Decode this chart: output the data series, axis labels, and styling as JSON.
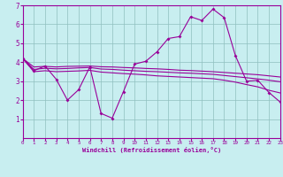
{
  "xlabel": "Windchill (Refroidissement éolien,°C)",
  "background_color": "#c8eef0",
  "line_color": "#990099",
  "grid_color": "#8fbfbf",
  "xlim": [
    0,
    23
  ],
  "ylim": [
    0,
    7
  ],
  "xticks": [
    0,
    1,
    2,
    3,
    4,
    5,
    6,
    7,
    8,
    9,
    10,
    11,
    12,
    13,
    14,
    15,
    16,
    17,
    18,
    19,
    20,
    21,
    22,
    23
  ],
  "yticks": [
    1,
    2,
    3,
    4,
    5,
    6,
    7
  ],
  "series1_x": [
    0,
    1,
    2,
    3,
    4,
    5,
    6,
    7,
    8,
    9,
    10,
    11,
    12,
    13,
    14,
    15,
    16,
    17,
    18,
    19,
    20,
    21,
    22,
    23
  ],
  "series1_y": [
    4.2,
    3.55,
    3.8,
    3.1,
    2.0,
    2.55,
    3.75,
    1.3,
    1.05,
    2.45,
    3.9,
    4.05,
    4.55,
    5.25,
    5.35,
    6.4,
    6.2,
    6.8,
    6.35,
    4.35,
    3.0,
    3.05,
    2.4,
    1.9
  ],
  "series2_x": [
    0,
    1,
    2,
    3,
    4,
    5,
    6,
    7,
    8,
    9,
    10,
    11,
    12,
    13,
    14,
    15,
    16,
    17,
    18,
    19,
    20,
    21,
    22,
    23
  ],
  "series2_y": [
    4.2,
    3.75,
    3.78,
    3.75,
    3.78,
    3.79,
    3.8,
    3.76,
    3.75,
    3.72,
    3.7,
    3.67,
    3.65,
    3.62,
    3.58,
    3.56,
    3.53,
    3.5,
    3.46,
    3.42,
    3.38,
    3.34,
    3.28,
    3.22
  ],
  "series3_x": [
    0,
    1,
    2,
    3,
    4,
    5,
    6,
    7,
    8,
    9,
    10,
    11,
    12,
    13,
    14,
    15,
    16,
    17,
    18,
    19,
    20,
    21,
    22,
    23
  ],
  "series3_y": [
    4.2,
    3.62,
    3.68,
    3.65,
    3.67,
    3.7,
    3.72,
    3.64,
    3.62,
    3.58,
    3.55,
    3.52,
    3.5,
    3.47,
    3.44,
    3.42,
    3.39,
    3.36,
    3.3,
    3.24,
    3.18,
    3.12,
    3.05,
    2.97
  ],
  "series4_x": [
    0,
    1,
    2,
    3,
    4,
    5,
    6,
    7,
    8,
    9,
    10,
    11,
    12,
    13,
    14,
    15,
    16,
    17,
    18,
    19,
    20,
    21,
    22,
    23
  ],
  "series4_y": [
    4.2,
    3.5,
    3.55,
    3.5,
    3.52,
    3.54,
    3.57,
    3.48,
    3.44,
    3.4,
    3.37,
    3.33,
    3.28,
    3.25,
    3.22,
    3.19,
    3.16,
    3.13,
    3.05,
    2.95,
    2.82,
    2.7,
    2.52,
    2.38
  ]
}
